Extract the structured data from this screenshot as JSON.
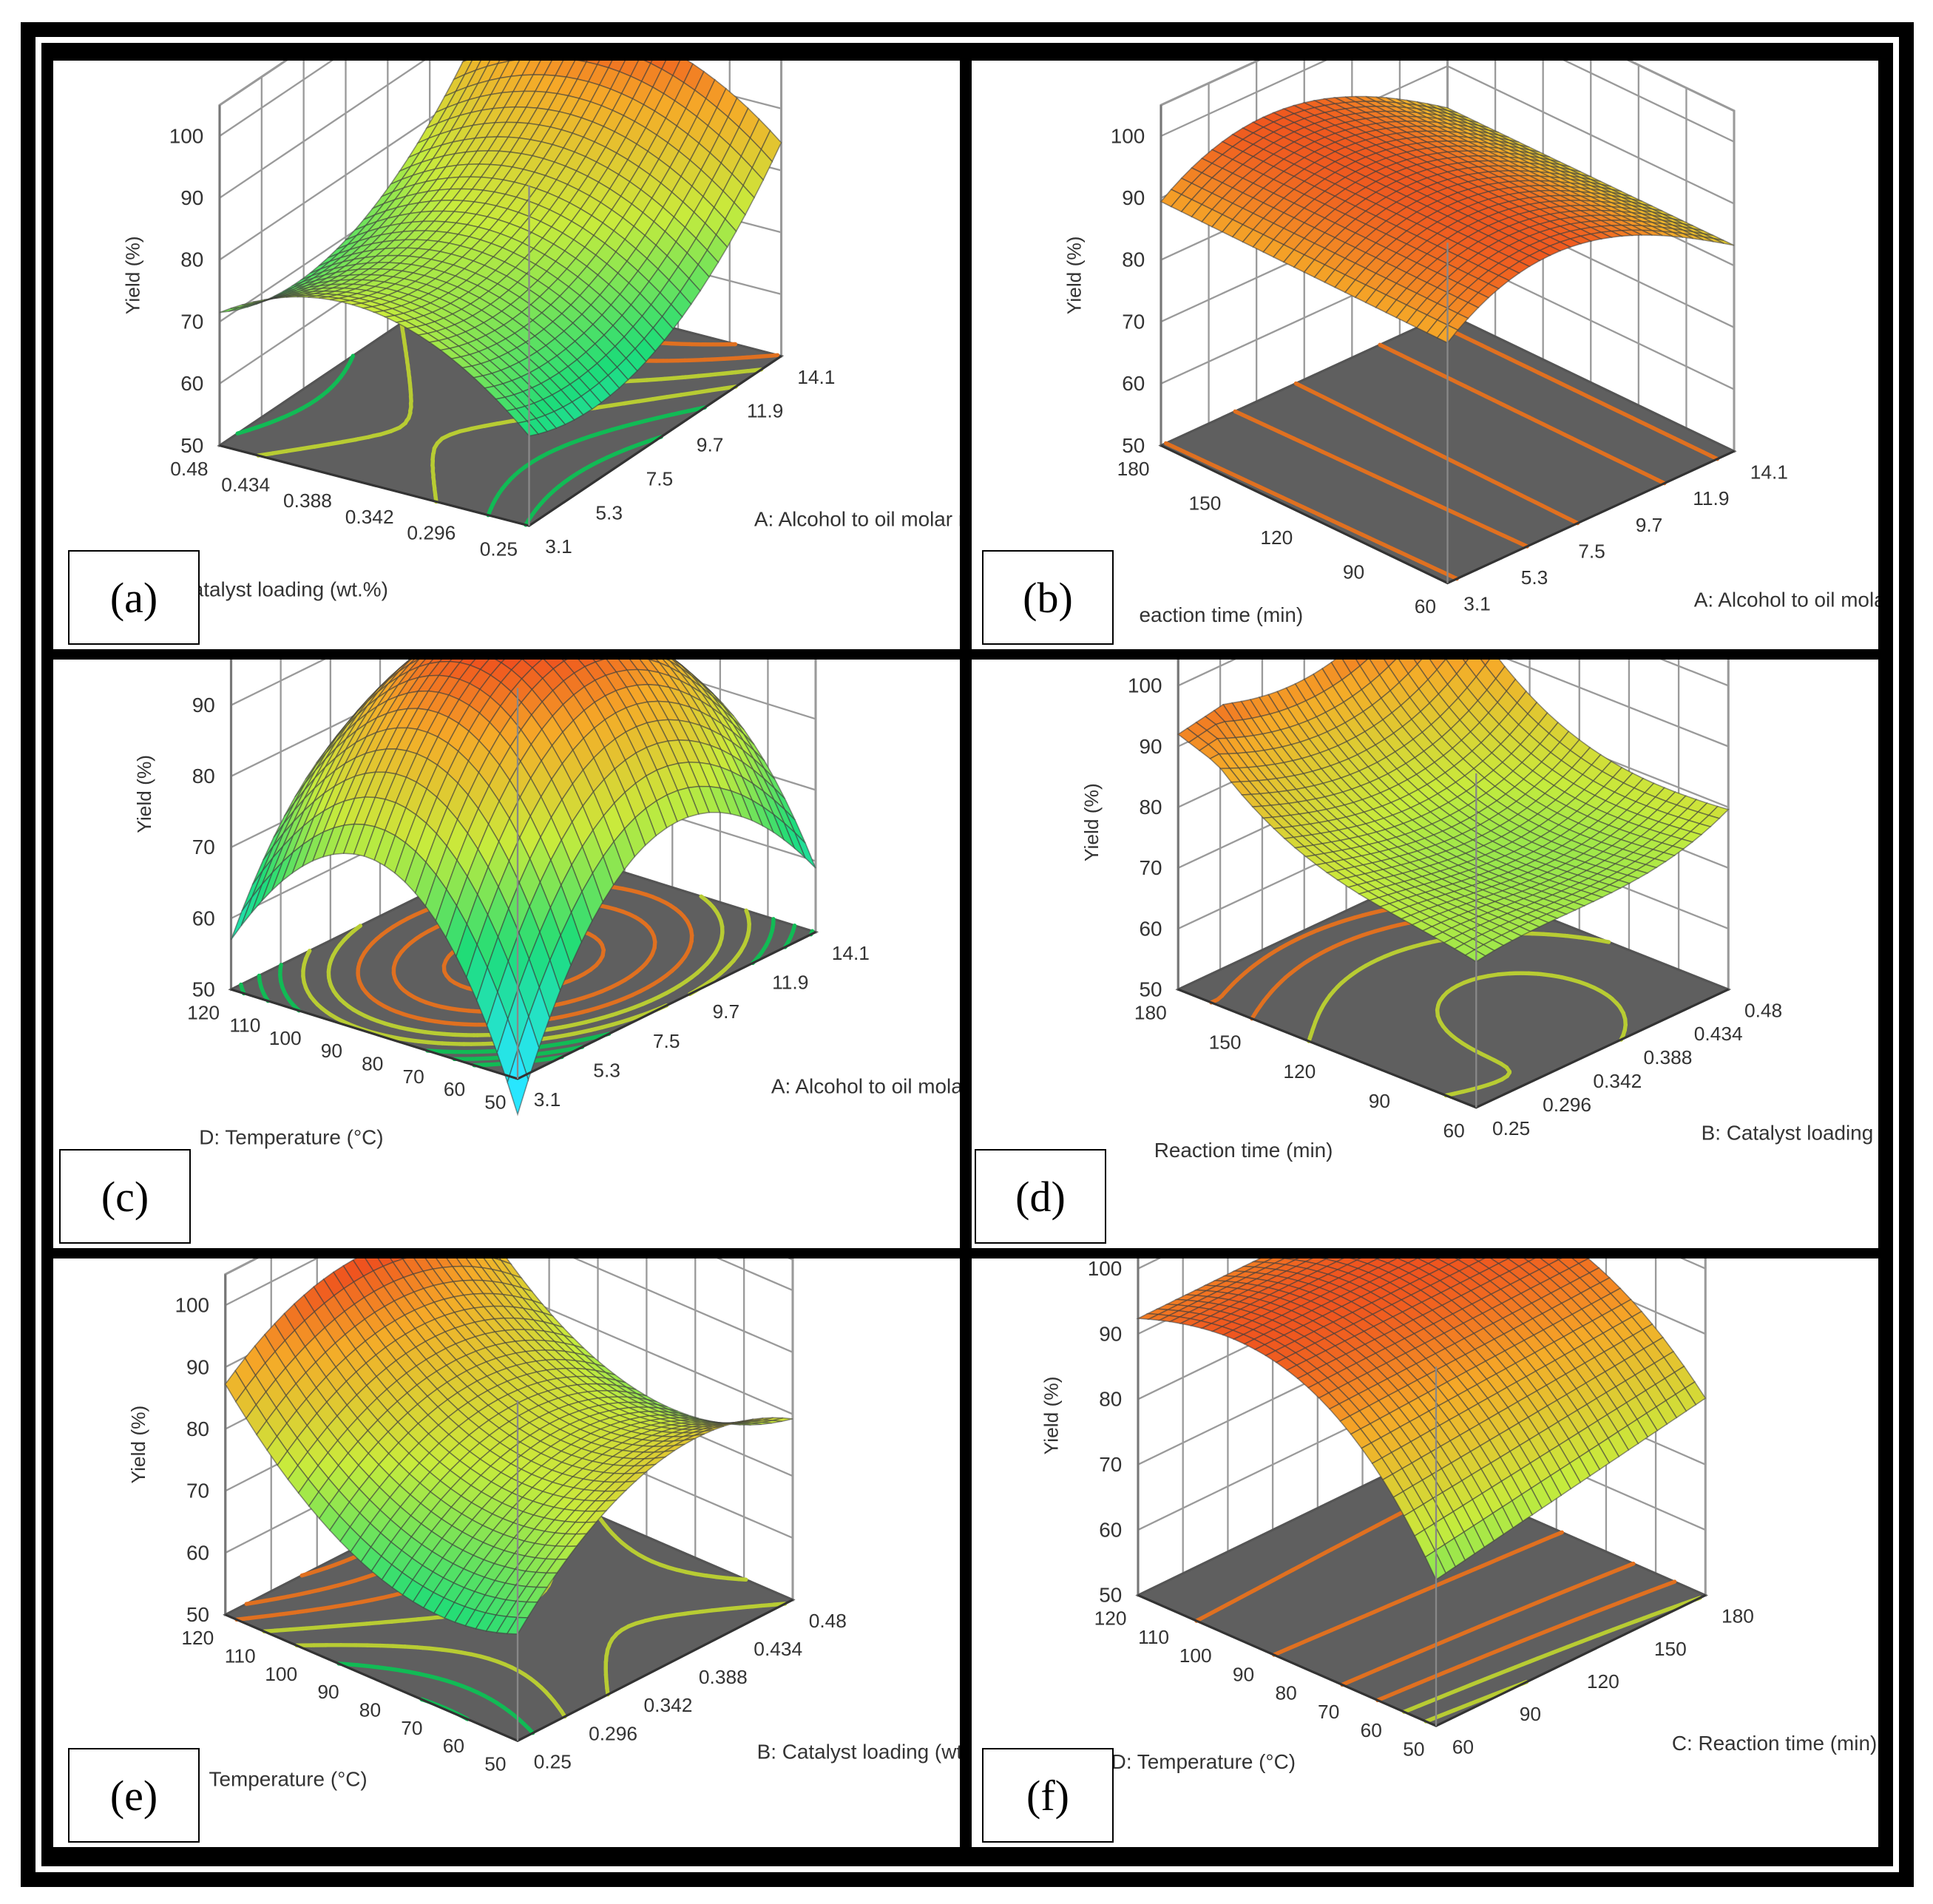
{
  "colors": {
    "floor": "#5f5f5f",
    "grid": "#9a9a9a",
    "frame": "#000000",
    "contour_low": "#11bb55",
    "contour_mid": "#b8cc33",
    "contour_high": "#e07020"
  },
  "chart_data": [
    {
      "id": "a",
      "type": "surface3d",
      "label": "(a)",
      "zlabel": "Yield (%)",
      "zticks": [
        "50",
        "60",
        "70",
        "80",
        "90",
        "100"
      ],
      "zlim": [
        50,
        100
      ],
      "xlabel": "A: Alcohol to oil molar ratio",
      "xticks": [
        "3.1",
        "5.3",
        "7.5",
        "9.7",
        "11.9",
        "14.1"
      ],
      "ylabel": "B: Catalyst loading (wt.%)",
      "yticks": [
        "0.25",
        "0.296",
        "0.342",
        "0.388",
        "0.434",
        "0.48"
      ],
      "y_label_visible": "atalyst loading (wt.%)",
      "y_ticks_shown": [
        "0.296",
        "0.342",
        "0.388",
        "0.434",
        "0.48"
      ],
      "shape": "saddle",
      "corner_yields": {
        "x_min_y_min": 60,
        "x_min_y_max": 67,
        "x_max_y_min": 80,
        "x_max_y_max": 83
      },
      "center_yield": 77
    },
    {
      "id": "b",
      "type": "surface3d",
      "label": "(b)",
      "zlabel": "Yield (%)",
      "zticks": [
        "50",
        "60",
        "70",
        "80",
        "90",
        "100"
      ],
      "zlim": [
        50,
        100
      ],
      "xlabel": "A: Alcohol to oil molar ratio",
      "xticks": [
        "3.1",
        "5.3",
        "7.5",
        "9.7",
        "11.9",
        "14.1"
      ],
      "ylabel": "C: Reaction time (min)",
      "yticks": [
        "60",
        "90",
        "120",
        "150",
        "180"
      ],
      "y_label_visible": "eaction time (min)",
      "y_ticks_shown": [
        "60",
        "90",
        "120",
        "150",
        "180"
      ],
      "shape": "ridge",
      "corner_yields": {
        "x_min_y_min": 67,
        "x_min_y_max": 69,
        "x_max_y_min": 79,
        "x_max_y_max": 79
      },
      "max_yield": 98
    },
    {
      "id": "c",
      "type": "surface3d",
      "label": "(c)",
      "zlabel": "Yield (%)",
      "zticks": [
        "50",
        "60",
        "70",
        "80",
        "90",
        "100"
      ],
      "zlim": [
        50,
        100
      ],
      "xlabel": "A: Alcohol to oil molar ratio",
      "xticks": [
        "3.1",
        "5.3",
        "7.5",
        "9.7",
        "11.9",
        "14.1"
      ],
      "ylabel": "D: Temperature (°C)",
      "yticks": [
        "50",
        "60",
        "70",
        "80",
        "90",
        "100",
        "110",
        "120"
      ],
      "y_label_visible": "D: Temperature (°C)",
      "y_ticks_shown": [
        "50",
        "60",
        "70",
        "80",
        "90",
        "100",
        "110",
        "120"
      ],
      "shape": "dome",
      "corner_yields": {
        "x_min_y_min": 45,
        "x_min_y_max": 57,
        "x_max_y_min": 59,
        "x_max_y_max": 70
      },
      "max_yield": 98
    },
    {
      "id": "d",
      "type": "surface3d",
      "label": "(d)",
      "zlabel": "Yield (%)",
      "zticks": [
        "50",
        "60",
        "70",
        "80",
        "90",
        "100"
      ],
      "zlim": [
        50,
        100
      ],
      "xlabel": "B: Catalyst loading (wt.%)",
      "xticks": [
        "0.25",
        "0.296",
        "0.342",
        "0.388",
        "0.434",
        "0.48"
      ],
      "ylabel": "C: Reaction time (min)",
      "yticks": [
        "60",
        "90",
        "120",
        "150",
        "180"
      ],
      "y_label_visible": "Reaction time (min)",
      "y_ticks_shown": [
        "60",
        "90",
        "120",
        "150",
        "180"
      ],
      "shape": "bowl",
      "corner_yields": {
        "x_min_y_min": 74,
        "x_min_y_max": 92,
        "x_max_y_min": 86,
        "x_max_y_max": 100
      },
      "min_yield": 74
    },
    {
      "id": "e",
      "type": "surface3d",
      "label": "(e)",
      "zlabel": "Yield (%)",
      "zticks": [
        "50",
        "60",
        "70",
        "80",
        "90",
        "100"
      ],
      "zlim": [
        50,
        100
      ],
      "xlabel": "B: Catalyst loading (wt.%)",
      "xticks": [
        "0.25",
        "0.296",
        "0.342",
        "0.388",
        "0.434",
        "0.48"
      ],
      "ylabel": "D: Temperature (°C)",
      "yticks": [
        "50",
        "60",
        "70",
        "80",
        "90",
        "100",
        "110",
        "120"
      ],
      "y_label_visible": "Temperature (°C)",
      "y_ticks_shown": [
        "50",
        "60",
        "70",
        "80",
        "90",
        "100",
        "110",
        "120"
      ],
      "shape": "saddle",
      "corner_yields": {
        "x_min_y_min": 63,
        "x_min_y_max": 83,
        "x_max_y_min": 75,
        "x_max_y_max": 82
      },
      "center_yield": 80
    },
    {
      "id": "f",
      "type": "surface3d",
      "label": "(f)",
      "zlabel": "Yield (%)",
      "zticks": [
        "50",
        "60",
        "70",
        "80",
        "90",
        "100"
      ],
      "zlim": [
        50,
        100
      ],
      "xlabel": "C: Reaction time (min)",
      "xticks": [
        "60",
        "90",
        "120",
        "150",
        "180"
      ],
      "ylabel": "D: Temperature (°C)",
      "yticks": [
        "50",
        "60",
        "70",
        "80",
        "90",
        "100",
        "110",
        "120"
      ],
      "y_label_visible": "D: Temperature (°C)",
      "y_ticks_shown": [
        "50",
        "60",
        "70",
        "80",
        "90",
        "100",
        "110",
        "120"
      ],
      "shape": "ridge",
      "corner_yields": {
        "x_min_y_min": 65,
        "x_min_y_max": 79,
        "x_max_y_min": 75,
        "x_max_y_max": 80
      },
      "max_yield": 98
    }
  ]
}
